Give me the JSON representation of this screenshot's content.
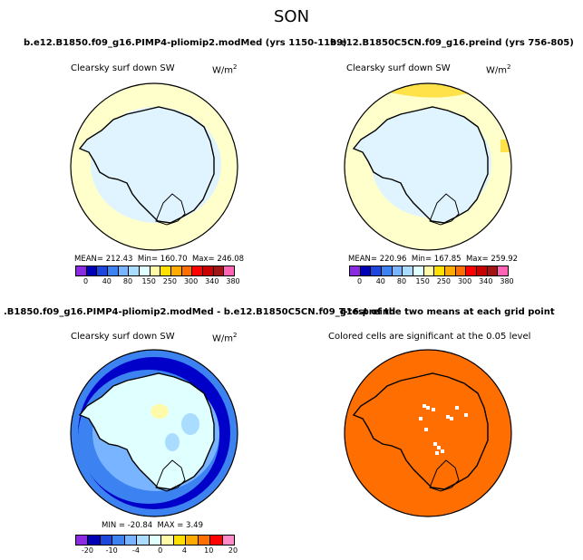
{
  "figure": {
    "title": "SON"
  },
  "panels": [
    {
      "id": "p1",
      "title": "b.e12.B1850.f09_g16.PIMP4-pliomip2.modMed (yrs 1150-1199)",
      "variable": "Clearsky surf down SW",
      "units": "W/m",
      "units_exp": "2",
      "stats": {
        "mean_label": "MEAN=",
        "mean": "212.43",
        "min_label": "Min=",
        "min": "160.70",
        "max_label": "Max=",
        "max": "246.08"
      }
    },
    {
      "id": "p2",
      "title": "b.e12.B1850C5CN.f09_g16.preind (yrs 756-805)",
      "variable": "Clearsky surf down SW",
      "units": "W/m",
      "units_exp": "2",
      "stats": {
        "mean_label": "MEAN=",
        "mean": "220.96",
        "min_label": "Min=",
        "min": "167.85",
        "max_label": "Max=",
        "max": "259.92"
      }
    },
    {
      "id": "p3",
      "title": ".B1850.f09_g16.PIMP4-pliomip2.modMed - b.e12.B1850C5CN.f09_g16.preind",
      "variable": "Clearsky surf down SW",
      "units": "W/m",
      "units_exp": "2",
      "stats": {
        "min_label": "MIN =",
        "min": "-20.84",
        "max_label": "MAX =",
        "max": "3.49"
      }
    },
    {
      "id": "p4",
      "title": "T-test of the two means at each grid point",
      "variable": "Colored cells are significant at the 0.05 level"
    }
  ],
  "colorbars": {
    "absolute": {
      "colors": [
        "#8a2be2",
        "#0000b4",
        "#1e46dc",
        "#3c82f0",
        "#78b4ff",
        "#aadcff",
        "#e0ffff",
        "#fffaaa",
        "#ffe000",
        "#ffaa00",
        "#ff6e00",
        "#ff0000",
        "#c80000",
        "#a01414",
        "#ff64b4"
      ],
      "ticks": [
        "0",
        "40",
        "80",
        "150",
        "250",
        "300",
        "340",
        "380"
      ]
    },
    "difference": {
      "colors": [
        "#8a2be2",
        "#0000b4",
        "#1e46dc",
        "#3c82f0",
        "#78b4ff",
        "#aadcff",
        "#e0ffff",
        "#fffaaa",
        "#ffe000",
        "#ffaa00",
        "#ff6e00",
        "#ff0000",
        "#ff8cc8"
      ],
      "ticks": [
        "-20",
        "-10",
        "-4",
        "0",
        "4",
        "10",
        "20"
      ]
    }
  },
  "map_colors": {
    "ocean_pale": "#ffffcc",
    "ice_blue": "#e0f4ff",
    "yellow": "#ffe14a",
    "deep_blue": "#0000c8",
    "mid_blue": "#3c82f0",
    "light_blue": "#78b4ff",
    "signif_orange": "#ff6e00"
  }
}
